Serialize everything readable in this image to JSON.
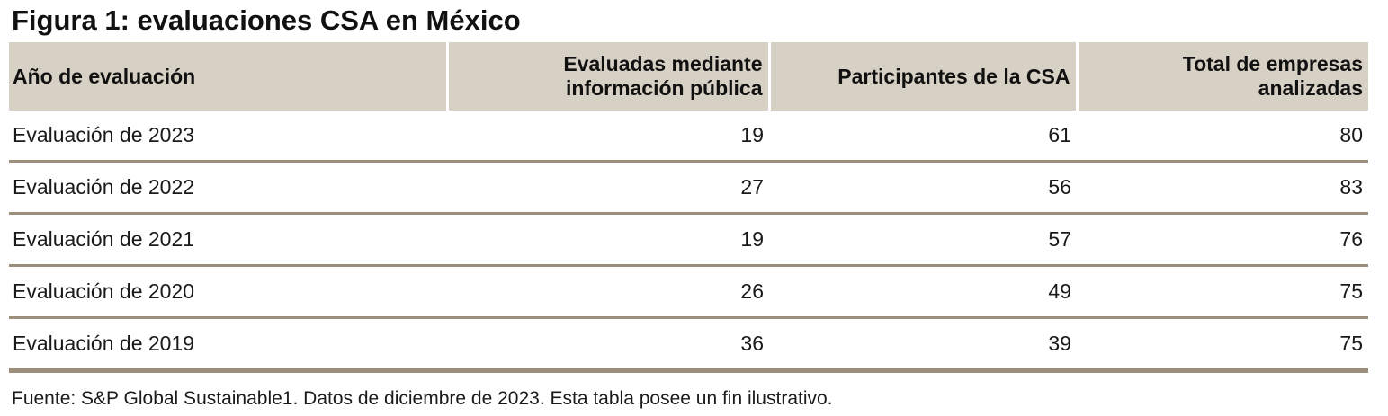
{
  "title": "Figura 1: evaluaciones CSA en México",
  "table": {
    "headers": {
      "year": "Año de evaluación",
      "public": "Evaluadas mediante información pública",
      "participants": "Participantes de la CSA",
      "total": "Total de empresas analizadas"
    },
    "rows": [
      {
        "year": "Evaluación de 2023",
        "public": "19",
        "participants": "61",
        "total": "80"
      },
      {
        "year": "Evaluación de 2022",
        "public": "27",
        "participants": "56",
        "total": "83"
      },
      {
        "year": "Evaluación de 2021",
        "public": "19",
        "participants": "57",
        "total": "76"
      },
      {
        "year": "Evaluación de 2020",
        "public": "26",
        "participants": "49",
        "total": "75"
      },
      {
        "year": "Evaluación de 2019",
        "public": "36",
        "participants": "39",
        "total": "75"
      }
    ]
  },
  "footer": {
    "source_note": "Fuente: S&P Global Sustainable1. Datos de diciembre de 2023. Esta tabla posee un fin ilustrativo."
  },
  "colors": {
    "header_background": "#d7d0c4",
    "row_divider": "#9b8f7b",
    "header_separator": "#ffffff",
    "text": "#1a1a1a"
  },
  "chart_data": {
    "type": "table",
    "title": "Figura 1: evaluaciones CSA en México",
    "columns": [
      "Año de evaluación",
      "Evaluadas mediante información pública",
      "Participantes de la CSA",
      "Total de empresas analizadas"
    ],
    "rows": [
      [
        "Evaluación de 2023",
        19,
        61,
        80
      ],
      [
        "Evaluación de 2022",
        27,
        56,
        83
      ],
      [
        "Evaluación de 2021",
        19,
        57,
        76
      ],
      [
        "Evaluación de 2020",
        26,
        49,
        75
      ],
      [
        "Evaluación de 2019",
        36,
        39,
        75
      ]
    ],
    "source": "Fuente: S&P Global Sustainable1. Datos de diciembre de 2023. Esta tabla posee un fin ilustrativo."
  }
}
